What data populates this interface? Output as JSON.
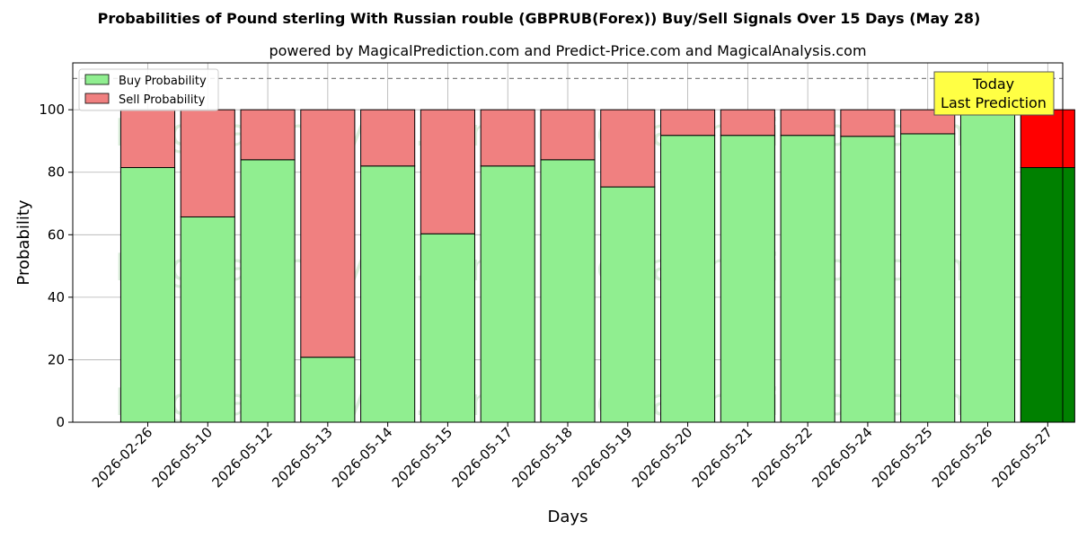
{
  "chart_data": {
    "type": "bar",
    "stacked": true,
    "title": "Probabilities of Pound sterling With Russian rouble (GBPRUB(Forex)) Buy/Sell Signals Over 15 Days (May 28)",
    "subtitle": "powered by MagicalPrediction.com and Predict-Price.com and MagicalAnalysis.com",
    "xlabel": "Days",
    "ylabel": "Probability",
    "ylim": [
      0,
      115
    ],
    "yticks": [
      0,
      20,
      40,
      60,
      80,
      100
    ],
    "reference_line": 110,
    "grid": true,
    "legend_position": "top-left",
    "categories": [
      "2026-02-26",
      "2026-05-10",
      "2026-05-12",
      "2026-05-13",
      "2026-05-14",
      "2026-05-15",
      "2026-05-17",
      "2026-05-18",
      "2026-05-19",
      "2026-05-20",
      "2026-05-21",
      "2026-05-22",
      "2026-05-24",
      "2026-05-25",
      "2026-05-26",
      "2026-05-27"
    ],
    "series": [
      {
        "name": "Buy Probability",
        "color": "#90ee90",
        "last_color": "#008000",
        "values": [
          81.5,
          65.7,
          84.0,
          20.8,
          82.0,
          60.3,
          82.0,
          84.0,
          75.3,
          91.8,
          91.8,
          91.8,
          91.5,
          92.3,
          100.0,
          81.5
        ]
      },
      {
        "name": "Sell Probability",
        "color": "#f08080",
        "last_color": "#ff0000",
        "values": [
          18.5,
          34.3,
          16.0,
          79.2,
          18.0,
          39.7,
          18.0,
          16.0,
          24.7,
          8.2,
          8.2,
          8.2,
          8.5,
          7.7,
          0.0,
          18.5
        ]
      }
    ],
    "annotation": {
      "lines": [
        "Today",
        "Last Prediction"
      ],
      "background": "#ffff44"
    },
    "watermarks": [
      "MagicalAnalysis.com",
      "MagicalPrediction.com"
    ]
  }
}
